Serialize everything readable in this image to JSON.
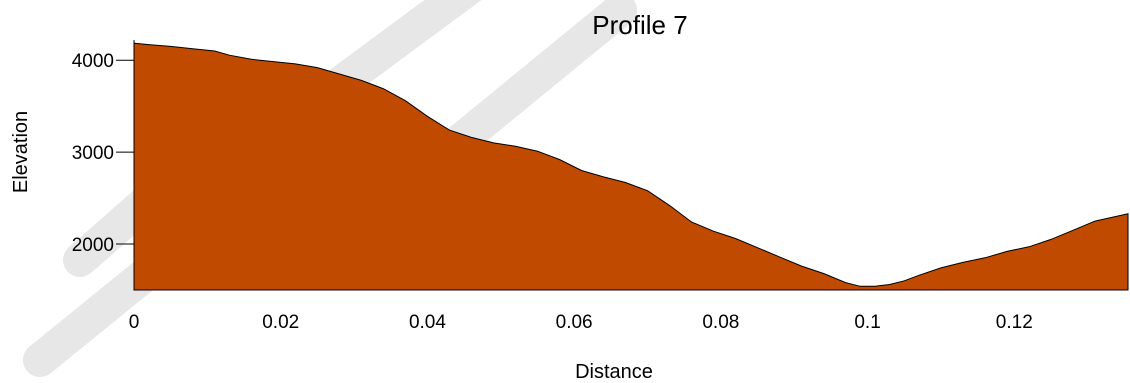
{
  "chart_data": {
    "type": "area",
    "title": "Profile 7",
    "xlabel": "Distance",
    "ylabel": "Elevation",
    "xlim": [
      0,
      0.1355
    ],
    "ylim": [
      1500,
      4220
    ],
    "x_ticks": [
      0,
      0.02,
      0.04,
      0.06,
      0.08,
      0.1,
      0.12
    ],
    "x_tick_labels": [
      "0",
      "0.02",
      "0.04",
      "0.06",
      "0.08",
      "0.1",
      "0.12"
    ],
    "y_ticks": [
      2000,
      3000,
      4000
    ],
    "y_tick_labels": [
      "2000",
      "3000",
      "4000"
    ],
    "grid": false,
    "fill_color": "#C04A00",
    "series": [
      {
        "x": [
          0,
          0.002,
          0.005,
          0.008,
          0.011,
          0.013,
          0.016,
          0.019,
          0.022,
          0.025,
          0.028,
          0.031,
          0.034,
          0.037,
          0.04,
          0.043,
          0.046,
          0.049,
          0.052,
          0.055,
          0.058,
          0.061,
          0.064,
          0.067,
          0.07,
          0.073,
          0.076,
          0.079,
          0.082,
          0.085,
          0.088,
          0.091,
          0.094,
          0.097,
          0.099,
          0.101,
          0.103,
          0.105,
          0.107,
          0.11,
          0.113,
          0.116,
          0.119,
          0.122,
          0.125,
          0.128,
          0.131,
          0.1355
        ],
        "y": [
          4185,
          4170,
          4150,
          4125,
          4100,
          4055,
          4010,
          3985,
          3960,
          3920,
          3850,
          3780,
          3690,
          3560,
          3390,
          3240,
          3160,
          3100,
          3065,
          3010,
          2920,
          2800,
          2730,
          2670,
          2580,
          2420,
          2240,
          2140,
          2060,
          1960,
          1860,
          1760,
          1680,
          1580,
          1540,
          1540,
          1560,
          1600,
          1660,
          1740,
          1800,
          1850,
          1920,
          1970,
          2050,
          2150,
          2250,
          2330
        ]
      }
    ]
  }
}
